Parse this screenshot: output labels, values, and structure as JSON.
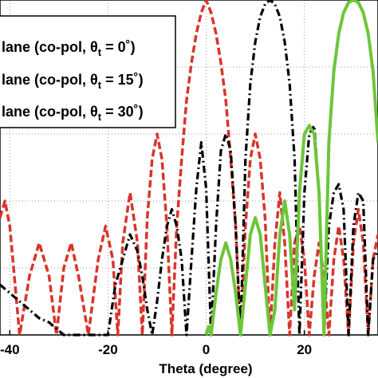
{
  "chart_data": {
    "type": "line",
    "xlabel": "Theta (degree)",
    "ylabel": "",
    "title": "",
    "xlim": [
      -42,
      35
    ],
    "ylim": [
      -40,
      0
    ],
    "grid": true,
    "legend_placement": "top-left",
    "x_ticks": [
      {
        "value": -40,
        "label": "-40"
      },
      {
        "value": -20,
        "label": "-20"
      },
      {
        "value": 0,
        "label": "0"
      },
      {
        "value": 20,
        "label": "20"
      }
    ],
    "y_grid_values": [
      -32,
      -24,
      -16,
      -8
    ],
    "legend": [
      {
        "text": "lane (co-pol, θ",
        "sub": "t",
        "suffix": " = 0˚)"
      },
      {
        "text": "lane (co-pol, θ",
        "sub": "t",
        "suffix": " = 15˚)"
      },
      {
        "text": "lane (co-pol, θ",
        "sub": "t",
        "suffix": " = 30˚)"
      }
    ],
    "series": [
      {
        "color": "#d9342b",
        "style": "dashed",
        "x": [
          -42,
          -41,
          -40,
          -38,
          -36,
          -34,
          -32,
          -30.5,
          -29,
          -27.5,
          -26,
          -24,
          -22,
          -20.5,
          -19,
          -18,
          -17,
          -15.5,
          -14,
          -13,
          -12,
          -11,
          -10,
          -9,
          -8,
          -7,
          -6,
          -5,
          -4,
          -3,
          -2,
          -1,
          0,
          1,
          2,
          3,
          4,
          5,
          6,
          7,
          8,
          9,
          10,
          11,
          12,
          13,
          14,
          15,
          16,
          17,
          18,
          19,
          20,
          21,
          22,
          23,
          24,
          25,
          26,
          27,
          28,
          29,
          30,
          31,
          32,
          33,
          34,
          35
        ],
        "y": [
          -26,
          -24,
          -27,
          -40,
          -33,
          -29,
          -33,
          -40,
          -32,
          -29,
          -33,
          -40,
          -31,
          -27,
          -31,
          -40,
          -29,
          -23,
          -29,
          -40,
          -26,
          -19,
          -16,
          -19,
          -27,
          -40,
          -27,
          -19,
          -12,
          -7.5,
          -4,
          -1.5,
          0,
          -1.5,
          -4,
          -7.5,
          -12,
          -19,
          -27,
          -40,
          -27,
          -19,
          -16,
          -19,
          -26,
          -40,
          -29,
          -23,
          -29,
          -40,
          -29,
          -27,
          -31,
          -40,
          -33,
          -29,
          -33,
          -40,
          -31,
          -27,
          -31,
          -40,
          -29,
          -25,
          -29,
          -40,
          -31,
          -28
        ]
      },
      {
        "color": "#000000",
        "style": "dashdot",
        "x": [
          -42,
          -40,
          -38,
          -36,
          -34,
          -32,
          -30,
          -29,
          -27,
          -24,
          -22,
          -20,
          -18.5,
          -17,
          -15.5,
          -14,
          -13,
          -12,
          -11,
          -10,
          -9,
          -8,
          -7,
          -6,
          -5,
          -4,
          -3,
          -2,
          -1,
          0,
          1,
          2,
          3,
          4,
          5,
          6,
          7,
          8,
          9,
          10,
          11,
          12,
          13,
          14,
          15,
          16,
          17,
          18,
          19,
          20,
          21,
          22,
          23,
          24,
          25,
          26,
          27,
          28,
          29,
          30,
          31,
          32,
          33,
          34,
          35
        ],
        "y": [
          -34,
          -35,
          -36,
          -37,
          -38,
          -38.5,
          -39.5,
          -40,
          -40,
          -40,
          -40,
          -40,
          -34,
          -31,
          -28,
          -30,
          -33,
          -37,
          -40,
          -36,
          -31,
          -27,
          -25,
          -27,
          -31,
          -40,
          -31,
          -22.5,
          -17,
          -22.5,
          -40,
          -27,
          -18,
          -16,
          -18,
          -27,
          -40,
          -19,
          -10,
          -5,
          -2,
          -0.5,
          0,
          -0.5,
          -2,
          -5,
          -10,
          -19,
          -40,
          -23,
          -16,
          -15,
          -23,
          -40,
          -27,
          -23,
          -22,
          -25,
          -40,
          -27,
          -23,
          -24,
          -40,
          -31,
          -30
        ]
      },
      {
        "color": "#6cc63a",
        "style": "solid",
        "x": [
          0,
          0.5,
          1,
          2,
          3,
          4,
          5,
          6,
          7,
          8,
          9,
          10,
          11,
          12,
          13,
          14,
          15,
          16,
          17,
          18,
          19,
          20,
          21,
          22,
          23,
          24,
          25,
          26,
          27,
          28,
          29,
          30,
          31,
          32,
          33,
          34,
          35
        ],
        "y": [
          -40,
          -39,
          -40,
          -35,
          -31,
          -29,
          -31,
          -35,
          -40,
          -34,
          -28,
          -26,
          -28,
          -34,
          -40,
          -37,
          -28,
          -24,
          -28,
          -37,
          -23,
          -16,
          -15,
          -16,
          -23,
          -40,
          -17,
          -8.5,
          -4,
          -1.5,
          -0.3,
          0,
          -0.3,
          -1.5,
          -4,
          -8.5,
          -17
        ]
      }
    ]
  }
}
